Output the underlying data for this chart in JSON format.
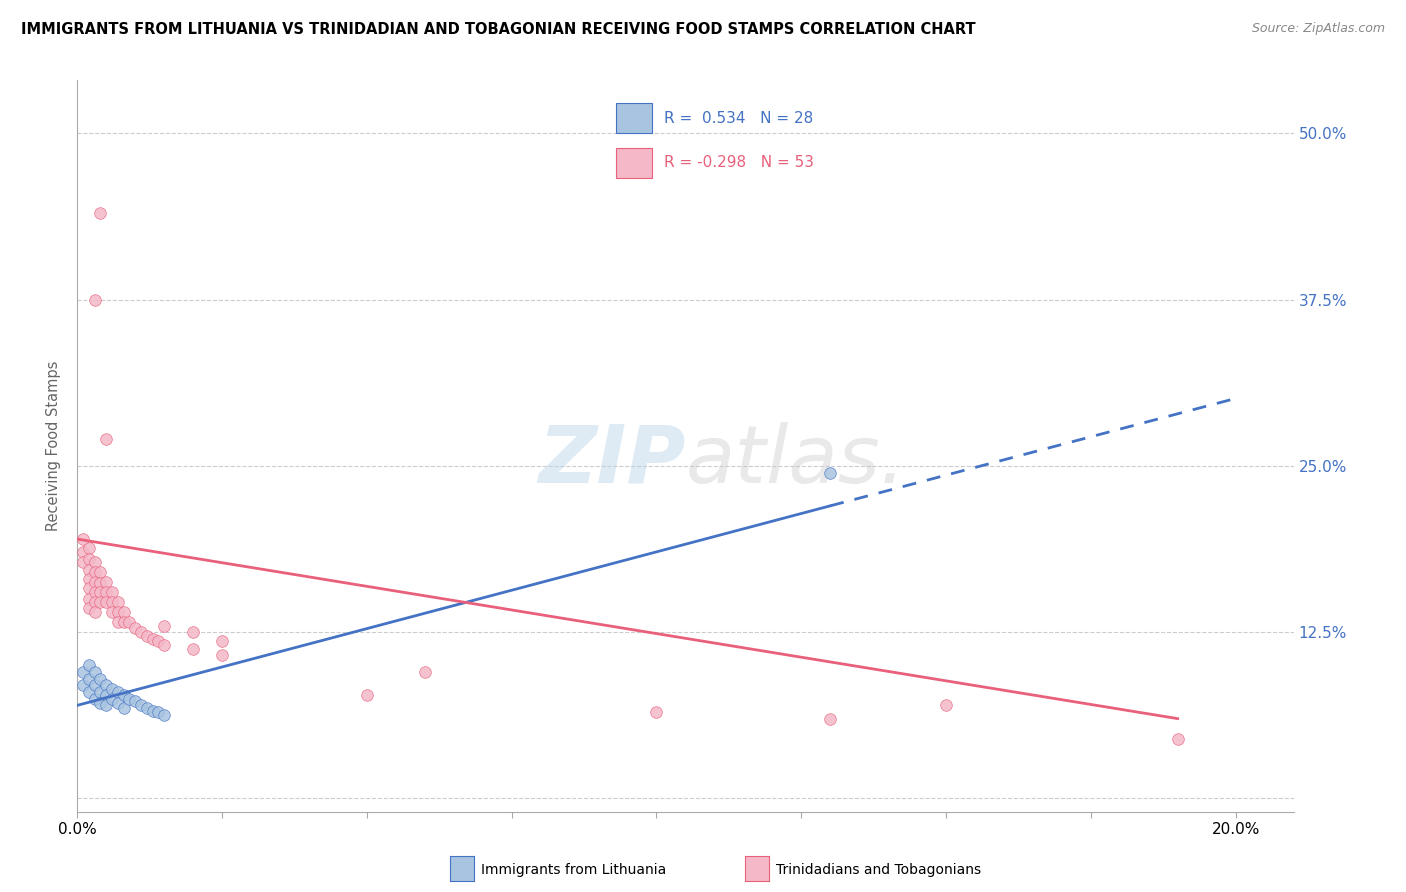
{
  "title": "IMMIGRANTS FROM LITHUANIA VS TRINIDADIAN AND TOBAGONIAN RECEIVING FOOD STAMPS CORRELATION CHART",
  "source": "Source: ZipAtlas.com",
  "ylabel": "Receiving Food Stamps",
  "ytick_vals": [
    0.0,
    0.125,
    0.25,
    0.375,
    0.5
  ],
  "ytick_labels": [
    "",
    "12.5%",
    "25.0%",
    "37.5%",
    "50.0%"
  ],
  "blue_color": "#a8c4e0",
  "pink_color": "#f4b8c8",
  "blue_line_color": "#4472c4",
  "pink_line_color": "#e8607a",
  "blue_scatter": [
    [
      0.001,
      0.095
    ],
    [
      0.001,
      0.085
    ],
    [
      0.002,
      0.1
    ],
    [
      0.002,
      0.09
    ],
    [
      0.002,
      0.08
    ],
    [
      0.003,
      0.095
    ],
    [
      0.003,
      0.085
    ],
    [
      0.003,
      0.075
    ],
    [
      0.004,
      0.09
    ],
    [
      0.004,
      0.08
    ],
    [
      0.004,
      0.072
    ],
    [
      0.005,
      0.085
    ],
    [
      0.005,
      0.078
    ],
    [
      0.005,
      0.07
    ],
    [
      0.006,
      0.082
    ],
    [
      0.006,
      0.075
    ],
    [
      0.007,
      0.08
    ],
    [
      0.007,
      0.072
    ],
    [
      0.008,
      0.078
    ],
    [
      0.008,
      0.068
    ],
    [
      0.009,
      0.075
    ],
    [
      0.01,
      0.073
    ],
    [
      0.011,
      0.07
    ],
    [
      0.012,
      0.068
    ],
    [
      0.013,
      0.066
    ],
    [
      0.014,
      0.065
    ],
    [
      0.13,
      0.245
    ],
    [
      0.015,
      0.063
    ]
  ],
  "pink_scatter": [
    [
      0.001,
      0.195
    ],
    [
      0.001,
      0.185
    ],
    [
      0.001,
      0.178
    ],
    [
      0.002,
      0.188
    ],
    [
      0.002,
      0.18
    ],
    [
      0.002,
      0.172
    ],
    [
      0.002,
      0.165
    ],
    [
      0.002,
      0.158
    ],
    [
      0.002,
      0.15
    ],
    [
      0.002,
      0.143
    ],
    [
      0.003,
      0.178
    ],
    [
      0.003,
      0.17
    ],
    [
      0.003,
      0.163
    ],
    [
      0.003,
      0.155
    ],
    [
      0.003,
      0.148
    ],
    [
      0.003,
      0.14
    ],
    [
      0.003,
      0.375
    ],
    [
      0.004,
      0.17
    ],
    [
      0.004,
      0.162
    ],
    [
      0.004,
      0.155
    ],
    [
      0.004,
      0.148
    ],
    [
      0.004,
      0.44
    ],
    [
      0.005,
      0.163
    ],
    [
      0.005,
      0.155
    ],
    [
      0.005,
      0.148
    ],
    [
      0.005,
      0.27
    ],
    [
      0.006,
      0.155
    ],
    [
      0.006,
      0.148
    ],
    [
      0.006,
      0.14
    ],
    [
      0.007,
      0.148
    ],
    [
      0.007,
      0.14
    ],
    [
      0.007,
      0.133
    ],
    [
      0.008,
      0.14
    ],
    [
      0.008,
      0.133
    ],
    [
      0.009,
      0.133
    ],
    [
      0.01,
      0.128
    ],
    [
      0.011,
      0.125
    ],
    [
      0.012,
      0.122
    ],
    [
      0.013,
      0.12
    ],
    [
      0.014,
      0.118
    ],
    [
      0.015,
      0.13
    ],
    [
      0.015,
      0.115
    ],
    [
      0.02,
      0.125
    ],
    [
      0.02,
      0.112
    ],
    [
      0.025,
      0.118
    ],
    [
      0.025,
      0.108
    ],
    [
      0.05,
      0.078
    ],
    [
      0.06,
      0.095
    ],
    [
      0.1,
      0.065
    ],
    [
      0.13,
      0.06
    ],
    [
      0.19,
      0.045
    ],
    [
      0.15,
      0.07
    ]
  ],
  "blue_line": {
    "x0": 0.0,
    "y0": 0.07,
    "x1": 0.13,
    "y1": 0.22,
    "x_dash": 0.2,
    "y_dash": 0.25
  },
  "pink_line": {
    "x0": 0.0,
    "y0": 0.195,
    "x1": 0.19,
    "y1": 0.06
  },
  "xlim": [
    0.0,
    0.21
  ],
  "ylim": [
    -0.01,
    0.54
  ],
  "blue_size": 70,
  "pink_size": 70
}
